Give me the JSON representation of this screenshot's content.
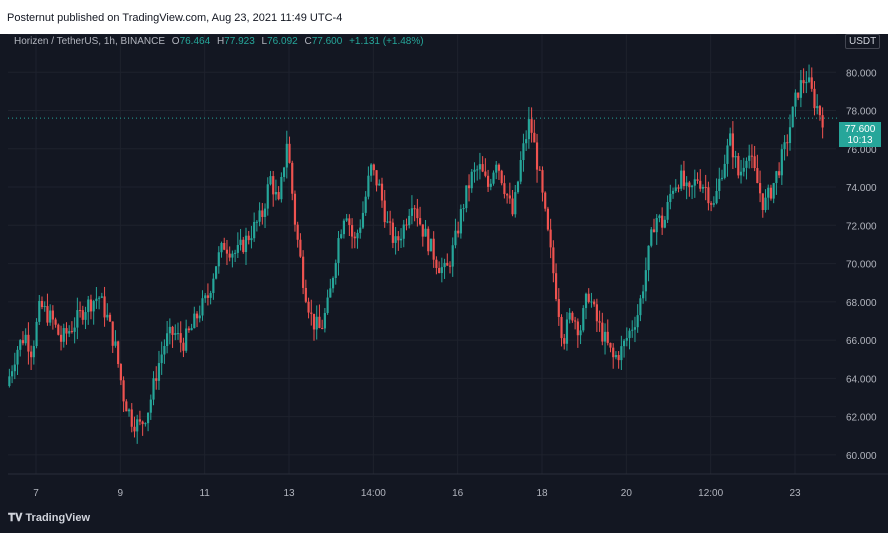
{
  "header": {
    "publish_text": "Posternut published on TradingView.com, Aug 23, 2021 11:49 UTC-4"
  },
  "legend": {
    "symbol": "Horizen / TetherUS, 1h, BINANCE",
    "open_label": "O",
    "open": "76.464",
    "high_label": "H",
    "high": "77.923",
    "low_label": "L",
    "low": "76.092",
    "close_label": "C",
    "close": "77.600",
    "change": "+1.131 (+1.48%)"
  },
  "axis": {
    "unit": "USDT"
  },
  "price_label": {
    "price": "77.600",
    "countdown": "10:13"
  },
  "footer": {
    "brand": "TradingView"
  },
  "colors": {
    "up": "#26a69a",
    "down": "#ef5350",
    "background": "#131722",
    "grid": "#1e222d",
    "text": "#b2b5be"
  },
  "chart_data": {
    "type": "candlestick",
    "ylim": [
      59,
      82
    ],
    "y_ticks": [
      "60.000",
      "62.000",
      "64.000",
      "66.000",
      "68.000",
      "70.000",
      "72.000",
      "74.000",
      "76.000",
      "78.000",
      "80.000",
      "82.000"
    ],
    "x_tick_labels": [
      "7",
      "9",
      "11",
      "13",
      "14:00",
      "16",
      "18",
      "20",
      "12:00",
      "23"
    ],
    "last_price": 77.6,
    "price_path": [
      {
        "t": 0,
        "p": 63.6
      },
      {
        "t": 0.012,
        "p": 65.5
      },
      {
        "t": 0.022,
        "p": 66.3
      },
      {
        "t": 0.03,
        "p": 65.4
      },
      {
        "t": 0.04,
        "p": 67.8
      },
      {
        "t": 0.055,
        "p": 67.0
      },
      {
        "t": 0.065,
        "p": 66.0
      },
      {
        "t": 0.08,
        "p": 66.8
      },
      {
        "t": 0.095,
        "p": 67.8
      },
      {
        "t": 0.11,
        "p": 68.3
      },
      {
        "t": 0.12,
        "p": 67.2
      },
      {
        "t": 0.13,
        "p": 65.6
      },
      {
        "t": 0.14,
        "p": 63.0
      },
      {
        "t": 0.15,
        "p": 61.8
      },
      {
        "t": 0.16,
        "p": 61.5
      },
      {
        "t": 0.17,
        "p": 62.5
      },
      {
        "t": 0.18,
        "p": 64.5
      },
      {
        "t": 0.19,
        "p": 66.0
      },
      {
        "t": 0.2,
        "p": 66.4
      },
      {
        "t": 0.21,
        "p": 65.8
      },
      {
        "t": 0.22,
        "p": 66.5
      },
      {
        "t": 0.23,
        "p": 67.5
      },
      {
        "t": 0.24,
        "p": 68.2
      },
      {
        "t": 0.25,
        "p": 70.0
      },
      {
        "t": 0.26,
        "p": 71.0
      },
      {
        "t": 0.275,
        "p": 70.5
      },
      {
        "t": 0.29,
        "p": 71.5
      },
      {
        "t": 0.305,
        "p": 72.5
      },
      {
        "t": 0.315,
        "p": 74.5
      },
      {
        "t": 0.325,
        "p": 73.0
      },
      {
        "t": 0.335,
        "p": 76.5
      },
      {
        "t": 0.345,
        "p": 72.0
      },
      {
        "t": 0.355,
        "p": 69.0
      },
      {
        "t": 0.365,
        "p": 67.0
      },
      {
        "t": 0.375,
        "p": 66.5
      },
      {
        "t": 0.385,
        "p": 68.0
      },
      {
        "t": 0.395,
        "p": 71.0
      },
      {
        "t": 0.405,
        "p": 73.0
      },
      {
        "t": 0.415,
        "p": 71.0
      },
      {
        "t": 0.425,
        "p": 72.5
      },
      {
        "t": 0.435,
        "p": 75.0
      },
      {
        "t": 0.445,
        "p": 74.0
      },
      {
        "t": 0.455,
        "p": 72.0
      },
      {
        "t": 0.465,
        "p": 71.0
      },
      {
        "t": 0.475,
        "p": 72.0
      },
      {
        "t": 0.485,
        "p": 73.5
      },
      {
        "t": 0.495,
        "p": 72.0
      },
      {
        "t": 0.505,
        "p": 71.0
      },
      {
        "t": 0.515,
        "p": 70.0
      },
      {
        "t": 0.525,
        "p": 69.5
      },
      {
        "t": 0.535,
        "p": 71.0
      },
      {
        "t": 0.545,
        "p": 73.0
      },
      {
        "t": 0.555,
        "p": 74.5
      },
      {
        "t": 0.565,
        "p": 75.0
      },
      {
        "t": 0.575,
        "p": 74.0
      },
      {
        "t": 0.585,
        "p": 75.5
      },
      {
        "t": 0.595,
        "p": 74.0
      },
      {
        "t": 0.605,
        "p": 72.5
      },
      {
        "t": 0.615,
        "p": 75.5
      },
      {
        "t": 0.625,
        "p": 77.5
      },
      {
        "t": 0.635,
        "p": 75.0
      },
      {
        "t": 0.645,
        "p": 72.0
      },
      {
        "t": 0.655,
        "p": 69.0
      },
      {
        "t": 0.665,
        "p": 66.0
      },
      {
        "t": 0.675,
        "p": 67.5
      },
      {
        "t": 0.685,
        "p": 66.5
      },
      {
        "t": 0.695,
        "p": 68.5
      },
      {
        "t": 0.705,
        "p": 67.0
      },
      {
        "t": 0.715,
        "p": 66.0
      },
      {
        "t": 0.725,
        "p": 65.0
      },
      {
        "t": 0.735,
        "p": 65.5
      },
      {
        "t": 0.745,
        "p": 66.5
      },
      {
        "t": 0.755,
        "p": 67.5
      },
      {
        "t": 0.765,
        "p": 70.0
      },
      {
        "t": 0.775,
        "p": 72.5
      },
      {
        "t": 0.785,
        "p": 72.0
      },
      {
        "t": 0.795,
        "p": 74.0
      },
      {
        "t": 0.805,
        "p": 74.5
      },
      {
        "t": 0.815,
        "p": 73.5
      },
      {
        "t": 0.825,
        "p": 74.5
      },
      {
        "t": 0.835,
        "p": 74.0
      },
      {
        "t": 0.845,
        "p": 73.0
      },
      {
        "t": 0.855,
        "p": 75.0
      },
      {
        "t": 0.865,
        "p": 76.5
      },
      {
        "t": 0.875,
        "p": 74.5
      },
      {
        "t": 0.885,
        "p": 76.0
      },
      {
        "t": 0.895,
        "p": 74.5
      },
      {
        "t": 0.905,
        "p": 73.0
      },
      {
        "t": 0.915,
        "p": 74.0
      },
      {
        "t": 0.93,
        "p": 76.0
      },
      {
        "t": 0.945,
        "p": 79.0
      },
      {
        "t": 0.955,
        "p": 79.8
      },
      {
        "t": 0.965,
        "p": 78.5
      },
      {
        "t": 0.975,
        "p": 77.6
      }
    ]
  }
}
